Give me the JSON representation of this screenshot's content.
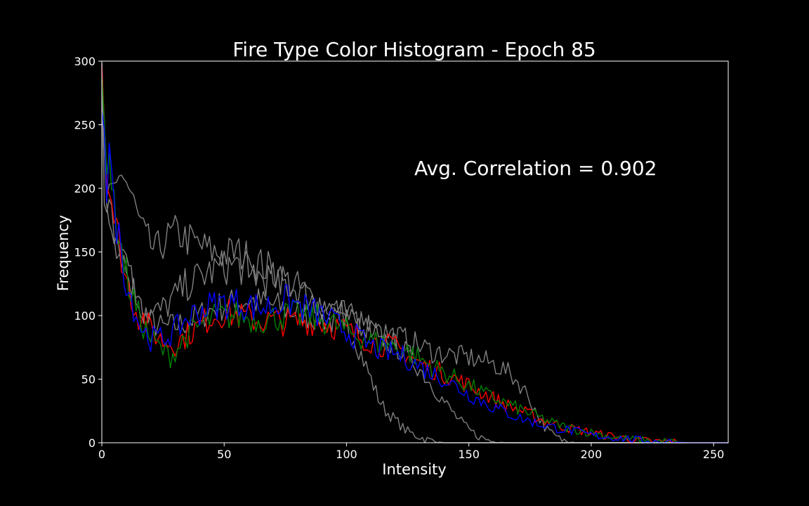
{
  "chart_data": {
    "type": "line",
    "title": "Fire Type Color Histogram - Epoch 85",
    "xlabel": "Intensity",
    "ylabel": "Frequency",
    "xlim": [
      0,
      256
    ],
    "ylim": [
      0,
      300
    ],
    "xticks": [
      0,
      50,
      100,
      150,
      200,
      250
    ],
    "yticks": [
      0,
      50,
      100,
      150,
      200,
      250,
      300
    ],
    "annotation": "Avg. Correlation = 0.902",
    "grid": false,
    "background": "#000000",
    "foreground": "#ffffff",
    "series": [
      {
        "color": "#808080",
        "points": [
          [
            0,
            300
          ],
          [
            1,
            175
          ],
          [
            3,
            200
          ],
          [
            5,
            160
          ],
          [
            7,
            140
          ],
          [
            9,
            150
          ],
          [
            11,
            135
          ],
          [
            13,
            125
          ],
          [
            15,
            110
          ],
          [
            17,
            105
          ],
          [
            20,
            95
          ],
          [
            25,
            90
          ],
          [
            30,
            92
          ],
          [
            35,
            95
          ],
          [
            40,
            100
          ],
          [
            45,
            105
          ],
          [
            50,
            108
          ],
          [
            55,
            110
          ],
          [
            60,
            112
          ],
          [
            65,
            110
          ],
          [
            70,
            108
          ],
          [
            75,
            105
          ],
          [
            80,
            102
          ],
          [
            85,
            100
          ],
          [
            90,
            98
          ],
          [
            95,
            95
          ],
          [
            100,
            92
          ],
          [
            103,
            85
          ],
          [
            106,
            70
          ],
          [
            110,
            50
          ],
          [
            113,
            35
          ],
          [
            116,
            25
          ],
          [
            120,
            18
          ],
          [
            124,
            10
          ],
          [
            128,
            6
          ],
          [
            132,
            3
          ],
          [
            136,
            1
          ],
          [
            140,
            0
          ],
          [
            256,
            0
          ]
        ]
      },
      {
        "color": "#808080",
        "points": [
          [
            0,
            290
          ],
          [
            2,
            195
          ],
          [
            4,
            190
          ],
          [
            6,
            200
          ],
          [
            8,
            215
          ],
          [
            10,
            205
          ],
          [
            12,
            195
          ],
          [
            15,
            175
          ],
          [
            18,
            160
          ],
          [
            22,
            150
          ],
          [
            26,
            160
          ],
          [
            30,
            165
          ],
          [
            35,
            160
          ],
          [
            40,
            155
          ],
          [
            45,
            150
          ],
          [
            50,
            148
          ],
          [
            55,
            150
          ],
          [
            60,
            145
          ],
          [
            65,
            140
          ],
          [
            70,
            135
          ],
          [
            75,
            128
          ],
          [
            80,
            122
          ],
          [
            85,
            115
          ],
          [
            90,
            110
          ],
          [
            95,
            105
          ],
          [
            100,
            100
          ],
          [
            105,
            95
          ],
          [
            110,
            88
          ],
          [
            115,
            82
          ],
          [
            120,
            76
          ],
          [
            125,
            70
          ],
          [
            130,
            58
          ],
          [
            135,
            45
          ],
          [
            140,
            32
          ],
          [
            145,
            20
          ],
          [
            150,
            10
          ],
          [
            155,
            4
          ],
          [
            160,
            1
          ],
          [
            165,
            0
          ],
          [
            256,
            0
          ]
        ]
      },
      {
        "color": "#808080",
        "points": [
          [
            0,
            280
          ],
          [
            2,
            190
          ],
          [
            5,
            170
          ],
          [
            8,
            150
          ],
          [
            11,
            130
          ],
          [
            14,
            115
          ],
          [
            17,
            105
          ],
          [
            20,
            100
          ],
          [
            25,
            105
          ],
          [
            30,
            115
          ],
          [
            35,
            125
          ],
          [
            40,
            130
          ],
          [
            45,
            135
          ],
          [
            50,
            138
          ],
          [
            55,
            140
          ],
          [
            60,
            135
          ],
          [
            65,
            130
          ],
          [
            70,
            128
          ],
          [
            75,
            125
          ],
          [
            80,
            120
          ],
          [
            85,
            115
          ],
          [
            90,
            108
          ],
          [
            95,
            105
          ],
          [
            100,
            100
          ],
          [
            105,
            95
          ],
          [
            110,
            92
          ],
          [
            115,
            88
          ],
          [
            120,
            84
          ],
          [
            125,
            80
          ],
          [
            130,
            76
          ],
          [
            135,
            72
          ],
          [
            140,
            70
          ],
          [
            145,
            68
          ],
          [
            150,
            67
          ],
          [
            155,
            65
          ],
          [
            160,
            62
          ],
          [
            165,
            57
          ],
          [
            170,
            48
          ],
          [
            174,
            38
          ],
          [
            178,
            22
          ],
          [
            182,
            10
          ],
          [
            186,
            4
          ],
          [
            190,
            1
          ],
          [
            194,
            0
          ],
          [
            256,
            0
          ]
        ]
      },
      {
        "color": "#ff0000",
        "points": [
          [
            0,
            300
          ],
          [
            1,
            260
          ],
          [
            2,
            205
          ],
          [
            3,
            210
          ],
          [
            5,
            175
          ],
          [
            7,
            160
          ],
          [
            9,
            135
          ],
          [
            11,
            122
          ],
          [
            13,
            110
          ],
          [
            15,
            100
          ],
          [
            17,
            98
          ],
          [
            20,
            88
          ],
          [
            25,
            80
          ],
          [
            30,
            78
          ],
          [
            35,
            85
          ],
          [
            40,
            92
          ],
          [
            45,
            100
          ],
          [
            50,
            102
          ],
          [
            55,
            100
          ],
          [
            60,
            98
          ],
          [
            65,
            96
          ],
          [
            70,
            96
          ],
          [
            75,
            95
          ],
          [
            80,
            95
          ],
          [
            85,
            96
          ],
          [
            90,
            95
          ],
          [
            95,
            92
          ],
          [
            100,
            88
          ],
          [
            105,
            84
          ],
          [
            110,
            80
          ],
          [
            115,
            77
          ],
          [
            120,
            75
          ],
          [
            125,
            70
          ],
          [
            130,
            62
          ],
          [
            135,
            58
          ],
          [
            140,
            54
          ],
          [
            145,
            50
          ],
          [
            150,
            45
          ],
          [
            155,
            40
          ],
          [
            160,
            35
          ],
          [
            165,
            30
          ],
          [
            170,
            26
          ],
          [
            175,
            22
          ],
          [
            180,
            18
          ],
          [
            185,
            15
          ],
          [
            190,
            12
          ],
          [
            195,
            10
          ],
          [
            200,
            8
          ],
          [
            205,
            6
          ],
          [
            210,
            5
          ],
          [
            215,
            3
          ],
          [
            220,
            2
          ],
          [
            225,
            1
          ],
          [
            230,
            1
          ],
          [
            240,
            0
          ],
          [
            256,
            0
          ]
        ]
      },
      {
        "color": "#008000",
        "points": [
          [
            0,
            285
          ],
          [
            1,
            250
          ],
          [
            2,
            225
          ],
          [
            3,
            230
          ],
          [
            5,
            185
          ],
          [
            7,
            165
          ],
          [
            9,
            140
          ],
          [
            11,
            125
          ],
          [
            13,
            112
          ],
          [
            15,
            100
          ],
          [
            17,
            92
          ],
          [
            20,
            82
          ],
          [
            25,
            72
          ],
          [
            28,
            68
          ],
          [
            30,
            72
          ],
          [
            35,
            85
          ],
          [
            40,
            92
          ],
          [
            45,
            98
          ],
          [
            50,
            100
          ],
          [
            55,
            100
          ],
          [
            60,
            98
          ],
          [
            65,
            97
          ],
          [
            70,
            98
          ],
          [
            75,
            100
          ],
          [
            80,
            100
          ],
          [
            85,
            99
          ],
          [
            90,
            97
          ],
          [
            95,
            93
          ],
          [
            100,
            88
          ],
          [
            105,
            84
          ],
          [
            110,
            80
          ],
          [
            115,
            78
          ],
          [
            120,
            75
          ],
          [
            125,
            72
          ],
          [
            130,
            66
          ],
          [
            135,
            60
          ],
          [
            140,
            55
          ],
          [
            145,
            50
          ],
          [
            150,
            45
          ],
          [
            155,
            40
          ],
          [
            160,
            35
          ],
          [
            165,
            31
          ],
          [
            170,
            27
          ],
          [
            175,
            23
          ],
          [
            180,
            19
          ],
          [
            185,
            15
          ],
          [
            190,
            12
          ],
          [
            195,
            10
          ],
          [
            200,
            8
          ],
          [
            205,
            6
          ],
          [
            210,
            4
          ],
          [
            215,
            3
          ],
          [
            220,
            2
          ],
          [
            225,
            1
          ],
          [
            230,
            1
          ],
          [
            240,
            0
          ],
          [
            256,
            0
          ]
        ]
      },
      {
        "color": "#0000ff",
        "points": [
          [
            0,
            270
          ],
          [
            1,
            255
          ],
          [
            2,
            200
          ],
          [
            3,
            240
          ],
          [
            5,
            180
          ],
          [
            7,
            162
          ],
          [
            9,
            138
          ],
          [
            11,
            120
          ],
          [
            13,
            108
          ],
          [
            15,
            95
          ],
          [
            17,
            88
          ],
          [
            20,
            82
          ],
          [
            25,
            82
          ],
          [
            30,
            88
          ],
          [
            35,
            98
          ],
          [
            40,
            104
          ],
          [
            45,
            108
          ],
          [
            50,
            110
          ],
          [
            55,
            110
          ],
          [
            60,
            108
          ],
          [
            65,
            106
          ],
          [
            70,
            108
          ],
          [
            75,
            112
          ],
          [
            80,
            108
          ],
          [
            85,
            104
          ],
          [
            90,
            100
          ],
          [
            95,
            94
          ],
          [
            100,
            88
          ],
          [
            105,
            82
          ],
          [
            110,
            76
          ],
          [
            115,
            72
          ],
          [
            120,
            70
          ],
          [
            125,
            66
          ],
          [
            130,
            60
          ],
          [
            135,
            55
          ],
          [
            140,
            50
          ],
          [
            145,
            44
          ],
          [
            150,
            38
          ],
          [
            155,
            33
          ],
          [
            160,
            28
          ],
          [
            165,
            24
          ],
          [
            170,
            20
          ],
          [
            175,
            17
          ],
          [
            180,
            14
          ],
          [
            185,
            12
          ],
          [
            190,
            10
          ],
          [
            195,
            8
          ],
          [
            200,
            6
          ],
          [
            205,
            5
          ],
          [
            210,
            4
          ],
          [
            215,
            3
          ],
          [
            220,
            2
          ],
          [
            225,
            1
          ],
          [
            230,
            1
          ],
          [
            240,
            0
          ],
          [
            256,
            0
          ]
        ]
      }
    ]
  }
}
